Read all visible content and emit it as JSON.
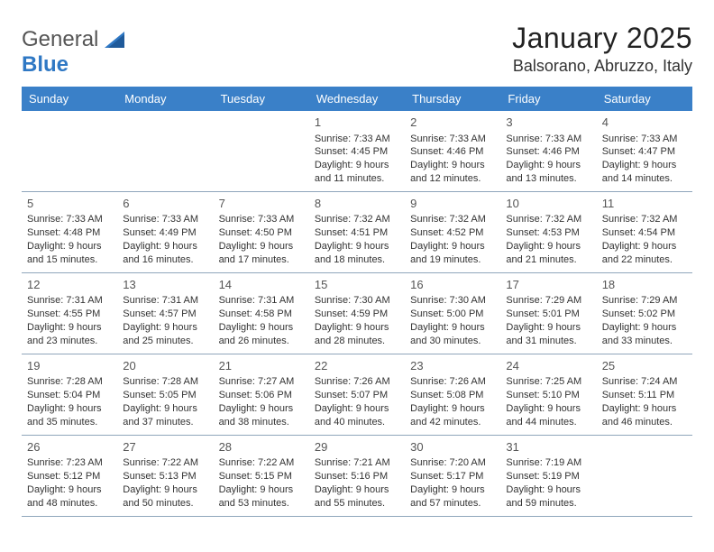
{
  "logo": {
    "text_main": "General",
    "text_accent": "Blue"
  },
  "header": {
    "title": "January 2025",
    "location": "Balsorano, Abruzzo, Italy"
  },
  "calendar": {
    "header_color": "#3a80c8",
    "header_text_color": "#ffffff",
    "grid_line_color": "#8fa6bb",
    "day_headers": [
      "Sunday",
      "Monday",
      "Tuesday",
      "Wednesday",
      "Thursday",
      "Friday",
      "Saturday"
    ],
    "weeks": [
      [
        {
          "empty": true
        },
        {
          "empty": true
        },
        {
          "empty": true
        },
        {
          "n": "1",
          "sunrise": "Sunrise: 7:33 AM",
          "sunset": "Sunset: 4:45 PM",
          "d1": "Daylight: 9 hours",
          "d2": "and 11 minutes."
        },
        {
          "n": "2",
          "sunrise": "Sunrise: 7:33 AM",
          "sunset": "Sunset: 4:46 PM",
          "d1": "Daylight: 9 hours",
          "d2": "and 12 minutes."
        },
        {
          "n": "3",
          "sunrise": "Sunrise: 7:33 AM",
          "sunset": "Sunset: 4:46 PM",
          "d1": "Daylight: 9 hours",
          "d2": "and 13 minutes."
        },
        {
          "n": "4",
          "sunrise": "Sunrise: 7:33 AM",
          "sunset": "Sunset: 4:47 PM",
          "d1": "Daylight: 9 hours",
          "d2": "and 14 minutes."
        }
      ],
      [
        {
          "n": "5",
          "sunrise": "Sunrise: 7:33 AM",
          "sunset": "Sunset: 4:48 PM",
          "d1": "Daylight: 9 hours",
          "d2": "and 15 minutes."
        },
        {
          "n": "6",
          "sunrise": "Sunrise: 7:33 AM",
          "sunset": "Sunset: 4:49 PM",
          "d1": "Daylight: 9 hours",
          "d2": "and 16 minutes."
        },
        {
          "n": "7",
          "sunrise": "Sunrise: 7:33 AM",
          "sunset": "Sunset: 4:50 PM",
          "d1": "Daylight: 9 hours",
          "d2": "and 17 minutes."
        },
        {
          "n": "8",
          "sunrise": "Sunrise: 7:32 AM",
          "sunset": "Sunset: 4:51 PM",
          "d1": "Daylight: 9 hours",
          "d2": "and 18 minutes."
        },
        {
          "n": "9",
          "sunrise": "Sunrise: 7:32 AM",
          "sunset": "Sunset: 4:52 PM",
          "d1": "Daylight: 9 hours",
          "d2": "and 19 minutes."
        },
        {
          "n": "10",
          "sunrise": "Sunrise: 7:32 AM",
          "sunset": "Sunset: 4:53 PM",
          "d1": "Daylight: 9 hours",
          "d2": "and 21 minutes."
        },
        {
          "n": "11",
          "sunrise": "Sunrise: 7:32 AM",
          "sunset": "Sunset: 4:54 PM",
          "d1": "Daylight: 9 hours",
          "d2": "and 22 minutes."
        }
      ],
      [
        {
          "n": "12",
          "sunrise": "Sunrise: 7:31 AM",
          "sunset": "Sunset: 4:55 PM",
          "d1": "Daylight: 9 hours",
          "d2": "and 23 minutes."
        },
        {
          "n": "13",
          "sunrise": "Sunrise: 7:31 AM",
          "sunset": "Sunset: 4:57 PM",
          "d1": "Daylight: 9 hours",
          "d2": "and 25 minutes."
        },
        {
          "n": "14",
          "sunrise": "Sunrise: 7:31 AM",
          "sunset": "Sunset: 4:58 PM",
          "d1": "Daylight: 9 hours",
          "d2": "and 26 minutes."
        },
        {
          "n": "15",
          "sunrise": "Sunrise: 7:30 AM",
          "sunset": "Sunset: 4:59 PM",
          "d1": "Daylight: 9 hours",
          "d2": "and 28 minutes."
        },
        {
          "n": "16",
          "sunrise": "Sunrise: 7:30 AM",
          "sunset": "Sunset: 5:00 PM",
          "d1": "Daylight: 9 hours",
          "d2": "and 30 minutes."
        },
        {
          "n": "17",
          "sunrise": "Sunrise: 7:29 AM",
          "sunset": "Sunset: 5:01 PM",
          "d1": "Daylight: 9 hours",
          "d2": "and 31 minutes."
        },
        {
          "n": "18",
          "sunrise": "Sunrise: 7:29 AM",
          "sunset": "Sunset: 5:02 PM",
          "d1": "Daylight: 9 hours",
          "d2": "and 33 minutes."
        }
      ],
      [
        {
          "n": "19",
          "sunrise": "Sunrise: 7:28 AM",
          "sunset": "Sunset: 5:04 PM",
          "d1": "Daylight: 9 hours",
          "d2": "and 35 minutes."
        },
        {
          "n": "20",
          "sunrise": "Sunrise: 7:28 AM",
          "sunset": "Sunset: 5:05 PM",
          "d1": "Daylight: 9 hours",
          "d2": "and 37 minutes."
        },
        {
          "n": "21",
          "sunrise": "Sunrise: 7:27 AM",
          "sunset": "Sunset: 5:06 PM",
          "d1": "Daylight: 9 hours",
          "d2": "and 38 minutes."
        },
        {
          "n": "22",
          "sunrise": "Sunrise: 7:26 AM",
          "sunset": "Sunset: 5:07 PM",
          "d1": "Daylight: 9 hours",
          "d2": "and 40 minutes."
        },
        {
          "n": "23",
          "sunrise": "Sunrise: 7:26 AM",
          "sunset": "Sunset: 5:08 PM",
          "d1": "Daylight: 9 hours",
          "d2": "and 42 minutes."
        },
        {
          "n": "24",
          "sunrise": "Sunrise: 7:25 AM",
          "sunset": "Sunset: 5:10 PM",
          "d1": "Daylight: 9 hours",
          "d2": "and 44 minutes."
        },
        {
          "n": "25",
          "sunrise": "Sunrise: 7:24 AM",
          "sunset": "Sunset: 5:11 PM",
          "d1": "Daylight: 9 hours",
          "d2": "and 46 minutes."
        }
      ],
      [
        {
          "n": "26",
          "sunrise": "Sunrise: 7:23 AM",
          "sunset": "Sunset: 5:12 PM",
          "d1": "Daylight: 9 hours",
          "d2": "and 48 minutes."
        },
        {
          "n": "27",
          "sunrise": "Sunrise: 7:22 AM",
          "sunset": "Sunset: 5:13 PM",
          "d1": "Daylight: 9 hours",
          "d2": "and 50 minutes."
        },
        {
          "n": "28",
          "sunrise": "Sunrise: 7:22 AM",
          "sunset": "Sunset: 5:15 PM",
          "d1": "Daylight: 9 hours",
          "d2": "and 53 minutes."
        },
        {
          "n": "29",
          "sunrise": "Sunrise: 7:21 AM",
          "sunset": "Sunset: 5:16 PM",
          "d1": "Daylight: 9 hours",
          "d2": "and 55 minutes."
        },
        {
          "n": "30",
          "sunrise": "Sunrise: 7:20 AM",
          "sunset": "Sunset: 5:17 PM",
          "d1": "Daylight: 9 hours",
          "d2": "and 57 minutes."
        },
        {
          "n": "31",
          "sunrise": "Sunrise: 7:19 AM",
          "sunset": "Sunset: 5:19 PM",
          "d1": "Daylight: 9 hours",
          "d2": "and 59 minutes."
        },
        {
          "empty": true
        }
      ]
    ]
  }
}
